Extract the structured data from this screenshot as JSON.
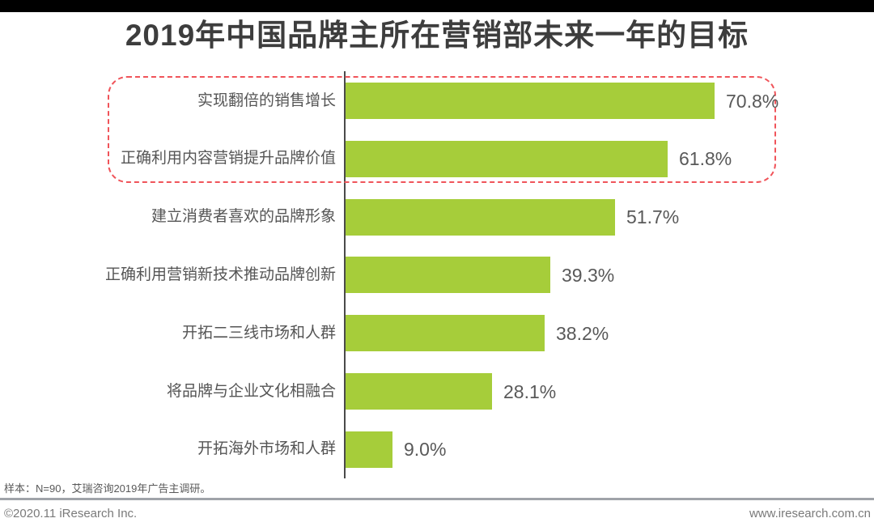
{
  "title": "2019年中国品牌主所在营销部未来一年的目标",
  "chart_data": {
    "type": "bar",
    "orientation": "horizontal",
    "title": "2019年中国品牌主所在营销部未来一年的目标",
    "categories": [
      "实现翻倍的销售增长",
      "正确利用内容营销提升品牌价值",
      "建立消费者喜欢的品牌形象",
      "正确利用营销新技术推动品牌创新",
      "开拓二三线市场和人群",
      "将品牌与企业文化相融合",
      "开拓海外市场和人群"
    ],
    "values": [
      70.8,
      61.8,
      51.7,
      39.3,
      38.2,
      28.1,
      9.0
    ],
    "value_labels": [
      "70.8%",
      "61.8%",
      "51.7%",
      "39.3%",
      "38.2%",
      "28.1%",
      "9.0%"
    ],
    "unit": "%",
    "xlim": [
      0,
      75
    ],
    "grid": false,
    "legend": false,
    "highlight_box": {
      "style": "red dashed rounded rectangle",
      "rows": [
        "实现翻倍的销售增长",
        "正确利用内容营销提升品牌价值"
      ]
    }
  },
  "footer": {
    "note": "样本：N=90，艾瑞咨询2019年广告主调研。",
    "copyright": "©2020.11 iResearch Inc.",
    "website": "www.iresearch.com.cn"
  },
  "colors": {
    "bar": "#a6cd3a",
    "axis": "#4a4a4a",
    "highlight_border": "#f0545a",
    "top_bar": "#000000",
    "title_text": "#3d3d3d",
    "label_text": "#555555",
    "value_text": "#595959",
    "note_text": "#595959",
    "divider": "#9fa3a9",
    "footer_text": "#7a7a7a"
  }
}
